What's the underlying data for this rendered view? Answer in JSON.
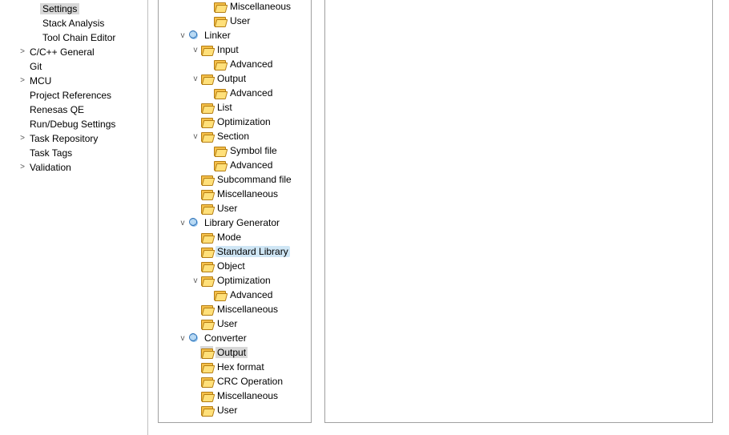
{
  "colors": {
    "selection_bg": "#d8d8d8",
    "highlight_bg": "#cfe6f5",
    "border": "#a0a0a0",
    "expander": "#595959",
    "folder_fill": "#f5c04a",
    "folder_front": "#ffe07a",
    "folder_border": "#b47d12",
    "globe_fill": "#bcdcf5",
    "globe_border": "#2a6fb5",
    "text": "#000000",
    "background": "#ffffff"
  },
  "left_panel": {
    "items": [
      {
        "label": "Settings",
        "indent": 2,
        "expander": "",
        "selected": true
      },
      {
        "label": "Stack Analysis",
        "indent": 2,
        "expander": ""
      },
      {
        "label": "Tool Chain Editor",
        "indent": 2,
        "expander": ""
      },
      {
        "label": "C/C++ General",
        "indent": 1,
        "expander": ">"
      },
      {
        "label": "Git",
        "indent": 1,
        "expander": ""
      },
      {
        "label": "MCU",
        "indent": 1,
        "expander": ">"
      },
      {
        "label": "Project References",
        "indent": 1,
        "expander": ""
      },
      {
        "label": "Renesas QE",
        "indent": 1,
        "expander": ""
      },
      {
        "label": "Run/Debug Settings",
        "indent": 1,
        "expander": ""
      },
      {
        "label": "Task Repository",
        "indent": 1,
        "expander": ">"
      },
      {
        "label": "Task Tags",
        "indent": 1,
        "expander": ""
      },
      {
        "label": "Validation",
        "indent": 1,
        "expander": ">"
      }
    ]
  },
  "tree_panel": {
    "rows": [
      {
        "level": 3,
        "icon": "folder",
        "label": "Miscellaneous"
      },
      {
        "level": 3,
        "icon": "folder",
        "label": "User"
      },
      {
        "level": 1,
        "icon": "globe",
        "label": "Linker",
        "expander": "v"
      },
      {
        "level": 2,
        "icon": "folder",
        "label": "Input",
        "expander": "v"
      },
      {
        "level": 3,
        "icon": "folder",
        "label": "Advanced"
      },
      {
        "level": 2,
        "icon": "folder",
        "label": "Output",
        "expander": "v"
      },
      {
        "level": 3,
        "icon": "folder",
        "label": "Advanced"
      },
      {
        "level": 2,
        "icon": "folder",
        "label": "List"
      },
      {
        "level": 2,
        "icon": "folder",
        "label": "Optimization"
      },
      {
        "level": 2,
        "icon": "folder",
        "label": "Section",
        "expander": "v"
      },
      {
        "level": 3,
        "icon": "folder",
        "label": "Symbol file"
      },
      {
        "level": 3,
        "icon": "folder",
        "label": "Advanced"
      },
      {
        "level": 2,
        "icon": "folder",
        "label": "Subcommand file"
      },
      {
        "level": 2,
        "icon": "folder",
        "label": "Miscellaneous"
      },
      {
        "level": 2,
        "icon": "folder",
        "label": "User"
      },
      {
        "level": 1,
        "icon": "globe",
        "label": "Library Generator",
        "expander": "v"
      },
      {
        "level": 2,
        "icon": "folder",
        "label": "Mode"
      },
      {
        "level": 2,
        "icon": "folder",
        "label": "Standard Library",
        "highlight": true
      },
      {
        "level": 2,
        "icon": "folder",
        "label": "Object"
      },
      {
        "level": 2,
        "icon": "folder",
        "label": "Optimization",
        "expander": "v"
      },
      {
        "level": 3,
        "icon": "folder",
        "label": "Advanced"
      },
      {
        "level": 2,
        "icon": "folder",
        "label": "Miscellaneous"
      },
      {
        "level": 2,
        "icon": "folder",
        "label": "User"
      },
      {
        "level": 1,
        "icon": "globe",
        "label": "Converter",
        "expander": "v"
      },
      {
        "level": 2,
        "icon": "folder",
        "label": "Output",
        "selected": true
      },
      {
        "level": 2,
        "icon": "folder",
        "label": "Hex format"
      },
      {
        "level": 2,
        "icon": "folder",
        "label": "CRC Operation"
      },
      {
        "level": 2,
        "icon": "folder",
        "label": "Miscellaneous"
      },
      {
        "level": 2,
        "icon": "folder",
        "label": "User"
      }
    ]
  }
}
